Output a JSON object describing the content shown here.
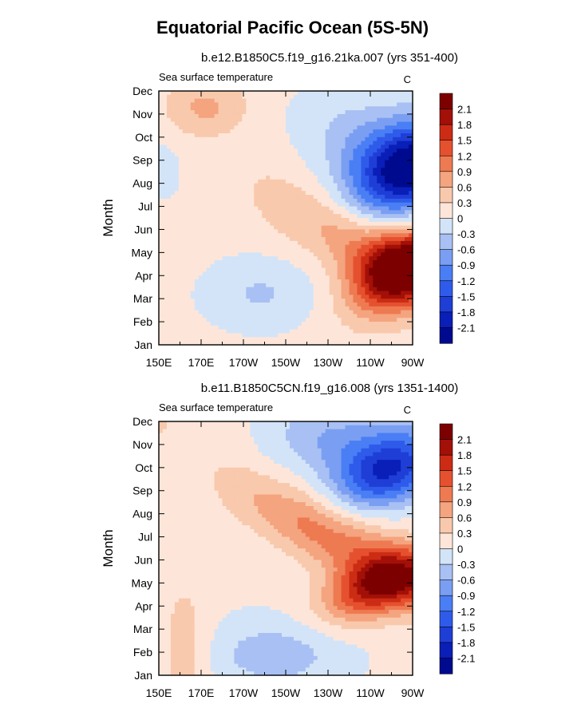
{
  "figure_title": "Equatorial Pacific Ocean (5S-5N)",
  "chart_data": [
    {
      "type": "heatmap",
      "subtitle": "b.e12.B1850C5.f19_g16.21ka.007 (yrs 351-400)",
      "left_label": "Sea surface temperature",
      "units": "C",
      "ylabel": "Month",
      "xlabel": "",
      "x_ticks": [
        "150E",
        "170E",
        "170W",
        "150W",
        "130W",
        "110W",
        "90W"
      ],
      "y_ticks": [
        "Jan",
        "Feb",
        "Mar",
        "Apr",
        "May",
        "Jun",
        "Jul",
        "Aug",
        "Sep",
        "Oct",
        "Nov",
        "Dec"
      ],
      "x_range_deg_east": [
        150,
        270
      ],
      "contour_levels": [
        -2.1,
        -1.8,
        -1.5,
        -1.2,
        -0.9,
        -0.6,
        -0.3,
        0,
        0.3,
        0.6,
        0.9,
        1.2,
        1.5,
        1.8,
        2.1
      ],
      "colorbar_labels": [
        "2.1",
        "1.8",
        "1.5",
        "1.2",
        "0.9",
        "0.6",
        "0.3",
        "0",
        "-0.3",
        "-0.6",
        "-0.9",
        "-1.2",
        "-1.5",
        "-1.8",
        "-2.1"
      ],
      "features": [
        {
          "name": "warm anomaly",
          "lon": 264,
          "month": 3.5,
          "peak": 2.3
        },
        {
          "name": "cold anomaly",
          "lon": 266,
          "month": 7.5,
          "peak": -2.2
        }
      ]
    },
    {
      "type": "heatmap",
      "subtitle": "b.e11.B1850C5CN.f19_g16.008 (yrs 1351-1400)",
      "left_label": "Sea surface temperature",
      "units": "C",
      "ylabel": "Month",
      "xlabel": "",
      "x_ticks": [
        "150E",
        "170E",
        "170W",
        "150W",
        "130W",
        "110W",
        "90W"
      ],
      "y_ticks": [
        "Jan",
        "Feb",
        "Mar",
        "Apr",
        "May",
        "Jun",
        "Jul",
        "Aug",
        "Sep",
        "Oct",
        "Nov",
        "Dec"
      ],
      "x_range_deg_east": [
        150,
        270
      ],
      "contour_levels": [
        -2.1,
        -1.8,
        -1.5,
        -1.2,
        -0.9,
        -0.6,
        -0.3,
        0,
        0.3,
        0.6,
        0.9,
        1.2,
        1.5,
        1.8,
        2.1
      ],
      "colorbar_labels": [
        "2.1",
        "1.8",
        "1.5",
        "1.2",
        "0.9",
        "0.6",
        "0.3",
        "0",
        "-0.3",
        "-0.6",
        "-0.9",
        "-1.2",
        "-1.5",
        "-1.8",
        "-2.1"
      ],
      "features": [
        {
          "name": "warm anomaly",
          "lon": 255,
          "month": 4.2,
          "peak": 1.8
        },
        {
          "name": "cold anomaly",
          "lon": 257,
          "month": 8.8,
          "peak": -1.4
        }
      ]
    }
  ],
  "colors": {
    "levels_fill": [
      "#000a8f",
      "#0a1eb8",
      "#1e3ed6",
      "#2f5bea",
      "#4a7ef5",
      "#7a9ef2",
      "#a8c0f3",
      "#d3e4f8",
      "#fde6d9",
      "#f9c9ad",
      "#f4a47e",
      "#ee7a52",
      "#e5512f",
      "#cc2c14",
      "#a31008",
      "#7d0000"
    ],
    "text": "#000000"
  }
}
